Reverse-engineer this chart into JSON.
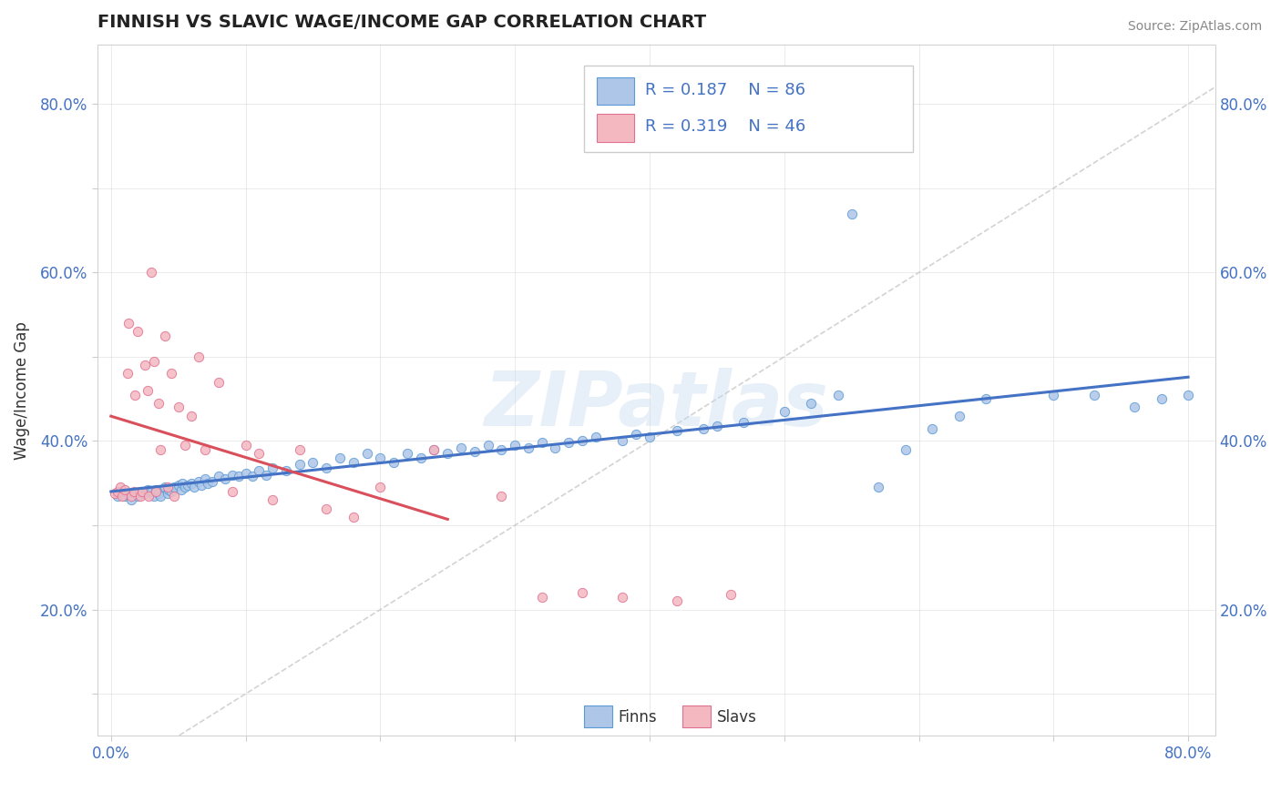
{
  "title": "FINNISH VS SLAVIC WAGE/INCOME GAP CORRELATION CHART",
  "source_text": "Source: ZipAtlas.com",
  "ylabel": "Wage/Income Gap",
  "xlim": [
    -0.01,
    0.82
  ],
  "ylim": [
    0.05,
    0.87
  ],
  "xticks": [
    0.0,
    0.1,
    0.2,
    0.3,
    0.4,
    0.5,
    0.6,
    0.7,
    0.8
  ],
  "yticks": [
    0.1,
    0.2,
    0.3,
    0.4,
    0.5,
    0.6,
    0.7,
    0.8
  ],
  "legend_r1": "0.187",
  "legend_n1": "86",
  "legend_r2": "0.319",
  "legend_n2": "46",
  "finns_color": "#aec6e8",
  "slavs_color": "#f4b8c1",
  "finns_edge": "#5b9bd5",
  "slavs_edge": "#e07090",
  "trend_finns_color": "#4472c4",
  "trend_slavs_color": "#d94f5c",
  "diag_color": "#c8c8c8",
  "watermark": "ZIPatlas",
  "tick_color": "#4472c4",
  "finns_x": [
    0.005,
    0.008,
    0.01,
    0.012,
    0.015,
    0.018,
    0.02,
    0.022,
    0.025,
    0.027,
    0.03,
    0.032,
    0.033,
    0.035,
    0.037,
    0.04,
    0.042,
    0.043,
    0.045,
    0.047,
    0.05,
    0.052,
    0.053,
    0.055,
    0.057,
    0.06,
    0.062,
    0.065,
    0.067,
    0.07,
    0.072,
    0.075,
    0.08,
    0.085,
    0.09,
    0.095,
    0.1,
    0.105,
    0.11,
    0.115,
    0.12,
    0.13,
    0.14,
    0.15,
    0.16,
    0.17,
    0.18,
    0.19,
    0.2,
    0.21,
    0.22,
    0.23,
    0.24,
    0.25,
    0.26,
    0.27,
    0.28,
    0.29,
    0.3,
    0.31,
    0.32,
    0.33,
    0.34,
    0.35,
    0.36,
    0.38,
    0.39,
    0.4,
    0.42,
    0.44,
    0.45,
    0.47,
    0.5,
    0.52,
    0.54,
    0.57,
    0.59,
    0.61,
    0.63,
    0.65,
    0.7,
    0.73,
    0.76,
    0.78,
    0.8,
    0.55
  ],
  "finns_y": [
    0.335,
    0.34,
    0.335,
    0.338,
    0.33,
    0.338,
    0.335,
    0.34,
    0.338,
    0.342,
    0.34,
    0.335,
    0.342,
    0.338,
    0.335,
    0.345,
    0.338,
    0.342,
    0.34,
    0.345,
    0.348,
    0.342,
    0.35,
    0.345,
    0.348,
    0.35,
    0.345,
    0.352,
    0.348,
    0.355,
    0.35,
    0.352,
    0.358,
    0.355,
    0.36,
    0.358,
    0.362,
    0.358,
    0.365,
    0.36,
    0.368,
    0.365,
    0.372,
    0.375,
    0.368,
    0.38,
    0.375,
    0.385,
    0.38,
    0.375,
    0.385,
    0.38,
    0.39,
    0.385,
    0.392,
    0.388,
    0.395,
    0.39,
    0.395,
    0.392,
    0.398,
    0.392,
    0.398,
    0.4,
    0.405,
    0.4,
    0.408,
    0.405,
    0.412,
    0.415,
    0.418,
    0.422,
    0.435,
    0.445,
    0.455,
    0.345,
    0.39,
    0.415,
    0.43,
    0.45,
    0.455,
    0.455,
    0.44,
    0.45,
    0.455,
    0.67
  ],
  "slavs_x": [
    0.003,
    0.005,
    0.007,
    0.008,
    0.01,
    0.012,
    0.013,
    0.015,
    0.017,
    0.018,
    0.02,
    0.022,
    0.023,
    0.025,
    0.027,
    0.028,
    0.03,
    0.032,
    0.033,
    0.035,
    0.037,
    0.04,
    0.042,
    0.045,
    0.047,
    0.05,
    0.055,
    0.06,
    0.065,
    0.07,
    0.08,
    0.09,
    0.1,
    0.11,
    0.12,
    0.14,
    0.16,
    0.18,
    0.2,
    0.24,
    0.29,
    0.32,
    0.35,
    0.38,
    0.42,
    0.46
  ],
  "slavs_y": [
    0.338,
    0.34,
    0.345,
    0.335,
    0.342,
    0.48,
    0.54,
    0.335,
    0.34,
    0.455,
    0.53,
    0.335,
    0.34,
    0.49,
    0.46,
    0.335,
    0.6,
    0.495,
    0.34,
    0.445,
    0.39,
    0.525,
    0.345,
    0.48,
    0.335,
    0.44,
    0.395,
    0.43,
    0.5,
    0.39,
    0.47,
    0.34,
    0.395,
    0.385,
    0.33,
    0.39,
    0.32,
    0.31,
    0.345,
    0.39,
    0.335,
    0.215,
    0.22,
    0.215,
    0.21,
    0.218
  ]
}
